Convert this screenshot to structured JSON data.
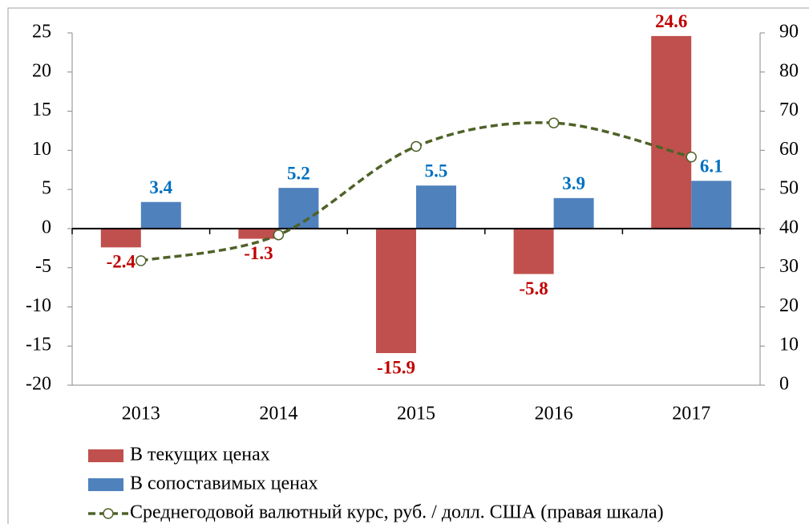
{
  "chart_data": {
    "type": "bar",
    "categories": [
      "2013",
      "2014",
      "2015",
      "2016",
      "2017"
    ],
    "series": [
      {
        "name": "В текущих ценах",
        "color": "#c0504d",
        "label_color": "#c00000",
        "values": [
          -2.4,
          -1.3,
          -15.9,
          -5.8,
          24.6
        ]
      },
      {
        "name": "В сопоставимых ценах",
        "color": "#4f81bd",
        "label_color": "#0070c0",
        "values": [
          3.4,
          5.2,
          5.5,
          3.9,
          6.1
        ]
      },
      {
        "name": "Среднегодовой валютный курс, руб. / долл. США (правая шкала)",
        "type": "line",
        "axis": "y2",
        "color": "#4f6228",
        "values": [
          31.8,
          38.4,
          61.0,
          67.0,
          58.3
        ]
      }
    ],
    "ylim": [
      -20,
      25
    ],
    "yticks": [
      -20,
      -15,
      -10,
      -5,
      0,
      5,
      10,
      15,
      20,
      25
    ],
    "y2lim": [
      0,
      90
    ],
    "y2ticks": [
      0,
      10,
      20,
      30,
      40,
      50,
      60,
      70,
      80,
      90
    ],
    "legend": "bottom"
  }
}
